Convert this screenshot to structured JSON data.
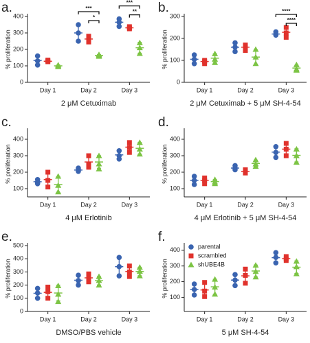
{
  "chart_data": [
    {
      "type": "strip",
      "label": "a.",
      "title": "2 μM Cetuximab",
      "y_label": "% proliferation",
      "categories": [
        "Day 1",
        "Day 2",
        "Day 3"
      ],
      "ylim": [
        0,
        400
      ],
      "yticks": [
        0,
        100,
        200,
        300,
        400
      ],
      "series": [
        {
          "color": "#3a64b0",
          "marker": "circle",
          "values": [
            133,
            300,
            365
          ],
          "errors": [
            27,
            50,
            22
          ],
          "points": [
            [
              105,
              130,
              160
            ],
            [
              250,
              300,
              350
            ],
            [
              340,
              365,
              385
            ]
          ]
        },
        {
          "color": "#e0322c",
          "marker": "square",
          "values": [
            128,
            263,
            331
          ],
          "errors": [
            6,
            18,
            7
          ],
          "points": [
            [
              125,
              130,
              135
            ],
            [
              245,
              265,
              280
            ],
            [
              325,
              330,
              338
            ]
          ]
        },
        {
          "color": "#7cc444",
          "marker": "triangle",
          "values": [
            100,
            163,
            210
          ],
          "errors": [
            5,
            5,
            33
          ],
          "points": [
            [
              95,
              100,
              105
            ],
            [
              158,
              163,
              168
            ],
            [
              175,
              210,
              240
            ]
          ]
        }
      ],
      "annotations": [
        {
          "label": "***",
          "category": 1,
          "between": [
            0,
            2
          ]
        },
        {
          "label": "*",
          "category": 1,
          "between": [
            1,
            2
          ]
        },
        {
          "label": "***",
          "category": 2,
          "between": [
            0,
            2
          ]
        },
        {
          "label": "**",
          "category": 2,
          "between": [
            1,
            2
          ]
        }
      ]
    },
    {
      "type": "strip",
      "label": "b.",
      "title": "2 μM Cetuximab + 5 μM SH-4-54",
      "y_label": "% proliferation",
      "categories": [
        "Day 1",
        "Day 2",
        "Day 3"
      ],
      "ylim": [
        0,
        300
      ],
      "yticks": [
        0,
        100,
        200,
        300
      ],
      "series": [
        {
          "color": "#3a64b0",
          "marker": "circle",
          "values": [
            105,
            160,
            220
          ],
          "errors": [
            20,
            20,
            8
          ],
          "points": [
            [
              85,
              105,
              125
            ],
            [
              140,
              160,
              180
            ],
            [
              215,
              220,
              230
            ]
          ]
        },
        {
          "color": "#e0322c",
          "marker": "square",
          "values": [
            95,
            160,
            228
          ],
          "errors": [
            8,
            12,
            23
          ],
          "points": [
            [
              85,
              95,
              100
            ],
            [
              145,
              160,
              170
            ],
            [
              205,
              225,
              250
            ]
          ]
        },
        {
          "color": "#7cc444",
          "marker": "triangle",
          "values": [
            110,
            115,
            65
          ],
          "errors": [
            20,
            33,
            13
          ],
          "points": [
            [
              90,
              105,
              130
            ],
            [
              85,
              115,
              150
            ],
            [
              55,
              60,
              80
            ]
          ]
        }
      ],
      "annotations": [
        {
          "label": "****",
          "category": 2,
          "between": [
            0,
            2
          ]
        },
        {
          "label": "****",
          "category": 2,
          "between": [
            1,
            2
          ]
        }
      ]
    },
    {
      "type": "strip",
      "label": "c.",
      "title": "4 μM Erlotinib",
      "y_label": "% proliferation",
      "categories": [
        "Day 1",
        "Day 2",
        "Day 3"
      ],
      "ylim": [
        50,
        450
      ],
      "yticks": [
        100,
        200,
        300,
        400
      ],
      "series": [
        {
          "color": "#3a64b0",
          "marker": "circle",
          "values": [
            142,
            213,
            305
          ],
          "errors": [
            12,
            10,
            25
          ],
          "points": [
            [
              130,
              140,
              155
            ],
            [
              205,
              215,
              225
            ],
            [
              280,
              300,
              330
            ]
          ]
        },
        {
          "color": "#e0322c",
          "marker": "square",
          "values": [
            155,
            262,
            352
          ],
          "errors": [
            45,
            36,
            30
          ],
          "points": [
            [
              110,
              150,
              200
            ],
            [
              230,
              250,
              300
            ],
            [
              320,
              350,
              380
            ]
          ]
        },
        {
          "color": "#7cc444",
          "marker": "triangle",
          "values": [
            125,
            262,
            345
          ],
          "errors": [
            48,
            38,
            35
          ],
          "points": [
            [
              80,
              120,
              175
            ],
            [
              220,
              250,
              300
            ],
            [
              310,
              340,
              380
            ]
          ]
        }
      ]
    },
    {
      "type": "strip",
      "label": "d.",
      "title": "4 μM Erlotinib + 5 μM SH-4-54",
      "y_label": "% proliferation",
      "categories": [
        "Day 1",
        "Day 2",
        "Day 3"
      ],
      "ylim": [
        50,
        450
      ],
      "yticks": [
        100,
        200,
        300,
        400
      ],
      "series": [
        {
          "color": "#3a64b0",
          "marker": "circle",
          "values": [
            150,
            225,
            322
          ],
          "errors": [
            25,
            12,
            32
          ],
          "points": [
            [
              125,
              150,
              175
            ],
            [
              215,
              225,
              240
            ],
            [
              290,
              320,
              355
            ]
          ]
        },
        {
          "color": "#e0322c",
          "marker": "square",
          "values": [
            150,
            205,
            340
          ],
          "errors": [
            18,
            10,
            37
          ],
          "points": [
            [
              130,
              150,
              165
            ],
            [
              195,
              205,
              215
            ],
            [
              300,
              340,
              375
            ]
          ]
        },
        {
          "color": "#7cc444",
          "marker": "triangle",
          "values": [
            143,
            253,
            302
          ],
          "errors": [
            12,
            20,
            40
          ],
          "points": [
            [
              130,
              140,
              155
            ],
            [
              235,
              250,
              275
            ],
            [
              260,
              300,
              340
            ]
          ]
        }
      ]
    },
    {
      "type": "strip",
      "label": "e.",
      "title": "DMSO/PBS vehicle",
      "y_label": "% proliferation",
      "categories": [
        "Day 1",
        "Day 2",
        "Day 3"
      ],
      "ylim": [
        0,
        500
      ],
      "yticks": [
        0,
        100,
        200,
        300,
        400,
        500
      ],
      "series": [
        {
          "color": "#3a64b0",
          "marker": "circle",
          "values": [
            138,
            237,
            340
          ],
          "errors": [
            38,
            38,
            70
          ],
          "points": [
            [
              100,
              140,
              175
            ],
            [
              200,
              235,
              275
            ],
            [
              270,
              340,
              410
            ]
          ]
        },
        {
          "color": "#e0322c",
          "marker": "square",
          "values": [
            145,
            255,
            303
          ],
          "errors": [
            43,
            30,
            40
          ],
          "points": [
            [
              100,
              150,
              185
            ],
            [
              225,
              255,
              285
            ],
            [
              265,
              300,
              345
            ]
          ]
        },
        {
          "color": "#7cc444",
          "marker": "triangle",
          "values": [
            140,
            233,
            303
          ],
          "errors": [
            60,
            32,
            32
          ],
          "points": [
            [
              75,
              130,
              195
            ],
            [
              200,
              235,
              265
            ],
            [
              270,
              305,
              335
            ]
          ]
        }
      ]
    },
    {
      "type": "strip",
      "label": "f.",
      "title": "5 μM SH-4-54",
      "y_label": "% proliferation",
      "categories": [
        "Day 1",
        "Day 2",
        "Day 3"
      ],
      "ylim": [
        10,
        430
      ],
      "yticks": [
        100,
        200,
        300,
        400
      ],
      "legend": "top-left",
      "series": [
        {
          "name": "parental",
          "color": "#3a64b0",
          "marker": "circle",
          "values": [
            150,
            210,
            353
          ],
          "errors": [
            35,
            35,
            32
          ],
          "points": [
            [
              115,
              150,
              185
            ],
            [
              175,
              210,
              245
            ],
            [
              320,
              355,
              385
            ]
          ]
        },
        {
          "name": "scrambled",
          "color": "#e0322c",
          "marker": "square",
          "values": [
            147,
            237,
            347
          ],
          "errors": [
            45,
            45,
            12
          ],
          "points": [
            [
              105,
              140,
              195
            ],
            [
              190,
              240,
              280
            ],
            [
              335,
              345,
              360
            ]
          ]
        },
        {
          "name": "shUBE4B",
          "color": "#7cc444",
          "marker": "triangle",
          "values": [
            167,
            268,
            292
          ],
          "errors": [
            48,
            38,
            40
          ],
          "points": [
            [
              120,
              165,
              215
            ],
            [
              230,
              265,
              305
            ],
            [
              250,
              295,
              330
            ]
          ]
        }
      ]
    }
  ]
}
